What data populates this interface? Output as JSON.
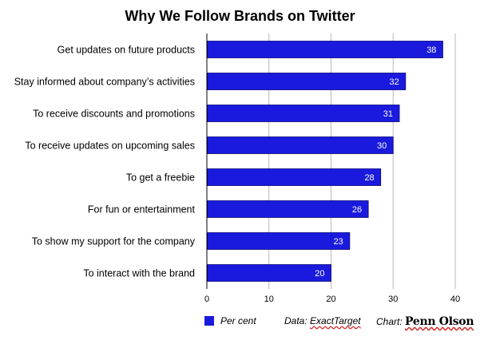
{
  "chart_data": {
    "type": "bar",
    "orientation": "horizontal",
    "title": "Why We Follow Brands on Twitter",
    "categories": [
      "Get updates on future products",
      "Stay informed about company’s activities",
      "To receive discounts and promotions",
      "To receive updates on upcoming sales",
      "To get a freebie",
      "For fun or entertainment",
      "To show my support for the company",
      "To interact with the brand"
    ],
    "series": [
      {
        "name": "Per cent",
        "values": [
          38,
          32,
          31,
          30,
          28,
          26,
          23,
          20
        ],
        "color": "#1a1adf"
      }
    ],
    "xlim": [
      0,
      40
    ],
    "xticks": [
      0,
      10,
      20,
      30,
      40
    ],
    "grid": true,
    "data_labels": true,
    "legend_position": "bottom"
  },
  "footer": {
    "source_prefix": "Data: ",
    "source_name": "ExactTarget",
    "credit_prefix": "Chart: ",
    "credit_name": "Penn Olson"
  },
  "colors": {
    "bar": "#1a1adf",
    "bar_edge": "#05057a",
    "grid": "#b8b8b8",
    "axis": "#000000"
  }
}
